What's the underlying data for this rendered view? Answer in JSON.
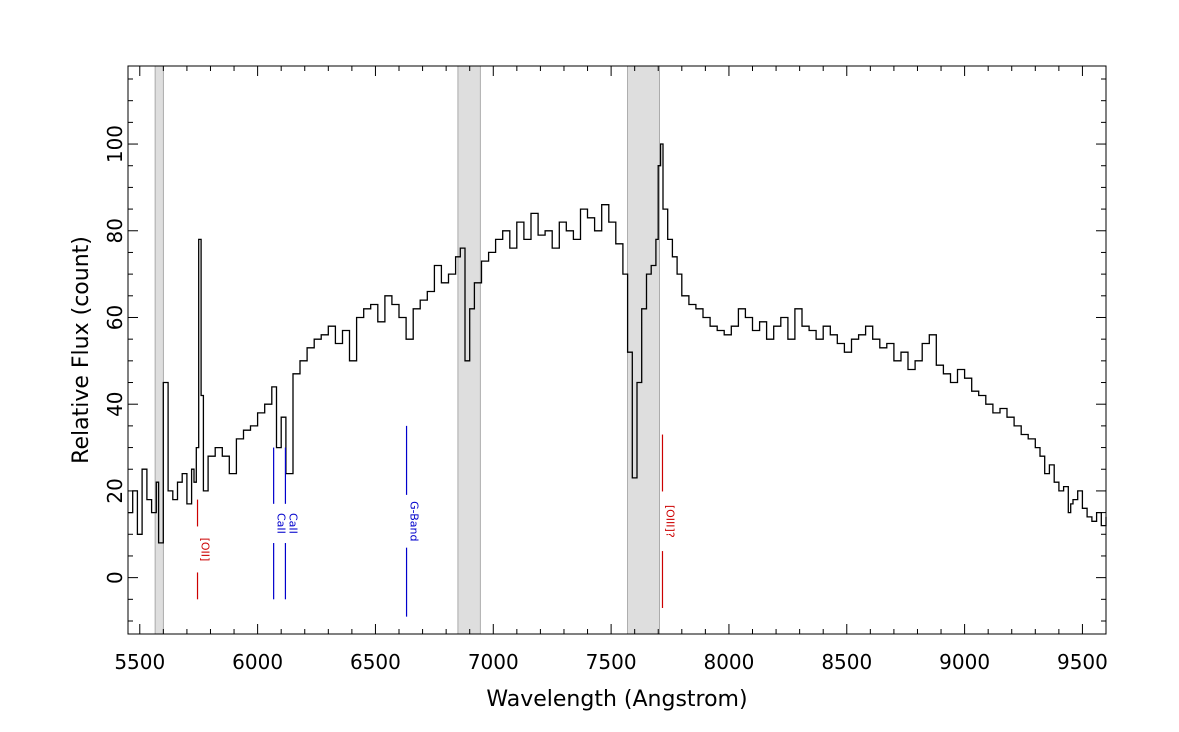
{
  "chart_data": {
    "type": "line",
    "title": "",
    "xlabel": "Wavelength (Angstrom)",
    "ylabel": "Relative Flux (count)",
    "xlim": [
      5450,
      9600
    ],
    "ylim": [
      -13,
      118
    ],
    "x_ticks": [
      5500,
      6000,
      6500,
      7000,
      7500,
      8000,
      8500,
      9000,
      9500
    ],
    "y_ticks": [
      0,
      20,
      40,
      60,
      80,
      100
    ],
    "x_tick_labels": [
      "5500",
      "6000",
      "6500",
      "7000",
      "7500",
      "8000",
      "8500",
      "9000",
      "9500"
    ],
    "y_tick_labels": [
      "0",
      "20",
      "40",
      "60",
      "80",
      "100"
    ],
    "grid": false,
    "shaded_bands": [
      [
        5565,
        5600
      ],
      [
        6850,
        6945
      ],
      [
        7570,
        7705
      ]
    ],
    "spectral_lines": [
      {
        "label": "[OII]",
        "x": 5745,
        "y_from": -5,
        "y_to": 18,
        "color": "#cc0000"
      },
      {
        "label": "CaII",
        "x": 6068,
        "y_from": -5,
        "y_to": 30,
        "color": "#0000cc"
      },
      {
        "label": "CaII",
        "x": 6118,
        "y_from": -5,
        "y_to": 30,
        "color": "#0000cc"
      },
      {
        "label": "G-Band",
        "x": 6632,
        "y_from": -9,
        "y_to": 35,
        "color": "#0000cc"
      },
      {
        "label": "[OIII]?",
        "x": 7718,
        "y_from": -7,
        "y_to": 33,
        "color": "#cc0000"
      }
    ],
    "series": [
      {
        "color": "#000000",
        "x": [
          5450,
          5470,
          5490,
          5510,
          5530,
          5550,
          5570,
          5580,
          5600,
          5620,
          5640,
          5660,
          5680,
          5700,
          5720,
          5730,
          5740,
          5750,
          5760,
          5770,
          5790,
          5820,
          5850,
          5880,
          5910,
          5940,
          5970,
          6000,
          6030,
          6060,
          6080,
          6100,
          6120,
          6150,
          6180,
          6210,
          6240,
          6270,
          6300,
          6330,
          6360,
          6390,
          6420,
          6450,
          6480,
          6510,
          6540,
          6570,
          6600,
          6630,
          6660,
          6690,
          6720,
          6750,
          6780,
          6810,
          6840,
          6860,
          6880,
          6900,
          6920,
          6950,
          6980,
          7010,
          7040,
          7070,
          7100,
          7130,
          7160,
          7190,
          7220,
          7250,
          7280,
          7310,
          7340,
          7370,
          7400,
          7430,
          7460,
          7490,
          7520,
          7550,
          7570,
          7590,
          7610,
          7630,
          7650,
          7670,
          7690,
          7700,
          7710,
          7720,
          7740,
          7760,
          7780,
          7800,
          7830,
          7860,
          7890,
          7920,
          7950,
          7980,
          8010,
          8040,
          8070,
          8100,
          8130,
          8160,
          8190,
          8220,
          8250,
          8280,
          8310,
          8340,
          8370,
          8400,
          8430,
          8460,
          8490,
          8520,
          8550,
          8580,
          8610,
          8640,
          8670,
          8700,
          8730,
          8760,
          8790,
          8820,
          8850,
          8880,
          8910,
          8940,
          8970,
          9000,
          9030,
          9060,
          9090,
          9120,
          9150,
          9180,
          9210,
          9240,
          9270,
          9300,
          9320,
          9340,
          9360,
          9380,
          9400,
          9420,
          9440,
          9450,
          9460,
          9480,
          9500,
          9520,
          9540,
          9560,
          9580,
          9600
        ],
        "values": [
          15,
          20,
          10,
          25,
          18,
          15,
          22,
          8,
          45,
          20,
          18,
          22,
          24,
          17,
          25,
          22,
          30,
          78,
          42,
          20,
          28,
          30,
          28,
          24,
          32,
          34,
          35,
          38,
          40,
          44,
          30,
          37,
          24,
          47,
          50,
          53,
          55,
          56,
          58,
          54,
          57,
          50,
          60,
          62,
          63,
          59,
          65,
          63,
          60,
          55,
          62,
          64,
          66,
          72,
          68,
          70,
          74,
          76,
          50,
          62,
          68,
          73,
          75,
          78,
          80,
          76,
          82,
          78,
          84,
          79,
          80,
          76,
          82,
          80,
          78,
          85,
          83,
          80,
          86,
          82,
          77,
          70,
          52,
          23,
          45,
          62,
          70,
          72,
          78,
          95,
          100,
          85,
          78,
          74,
          70,
          65,
          63,
          62,
          60,
          58,
          57,
          56,
          58,
          62,
          60,
          57,
          59,
          55,
          58,
          60,
          55,
          62,
          58,
          57,
          55,
          58,
          56,
          54,
          52,
          55,
          56,
          58,
          55,
          53,
          54,
          50,
          52,
          48,
          50,
          54,
          56,
          49,
          47,
          45,
          48,
          46,
          43,
          42,
          40,
          38,
          39,
          37,
          35,
          33,
          32,
          30,
          28,
          24,
          26,
          22,
          20,
          21,
          15,
          17,
          18,
          20,
          16,
          14,
          13,
          15,
          12,
          14
        ]
      }
    ]
  }
}
